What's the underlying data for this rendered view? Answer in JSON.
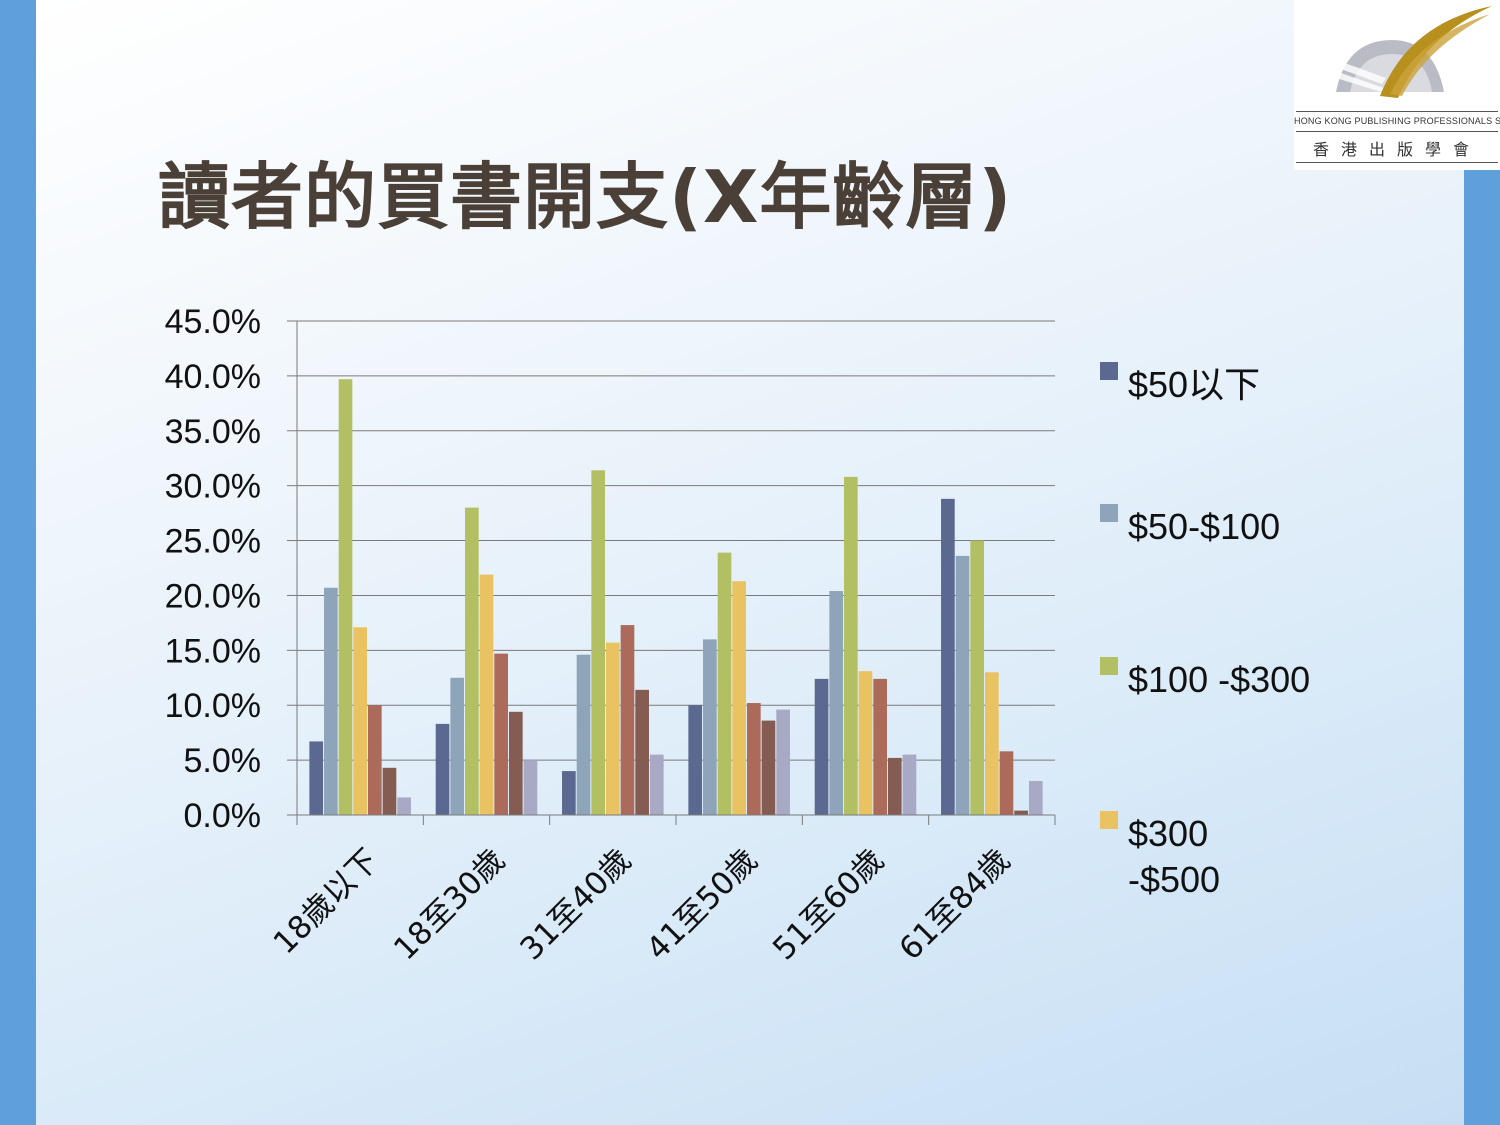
{
  "slide": {
    "title": "讀者的買書開支(X年齡層)"
  },
  "logo": {
    "english": "HONG KONG PUBLISHING PROFESSIONALS SOCIETY",
    "chinese": "香港出版學會"
  },
  "chart_data": {
    "type": "bar",
    "ylim": [
      0,
      45
    ],
    "ytick_labels": [
      "0.0%",
      "5.0%",
      "10.0%",
      "15.0%",
      "20.0%",
      "25.0%",
      "30.0%",
      "35.0%",
      "40.0%",
      "45.0%"
    ],
    "categories": [
      "18歲以下",
      "18至30歲",
      "31至40歲",
      "41至50歲",
      "51至60歲",
      "61至84歲"
    ],
    "legend_position": "right",
    "series": [
      {
        "name": "$50以下",
        "color": "#5b6890",
        "values": [
          6.7,
          8.3,
          4.0,
          10.0,
          12.4,
          28.8
        ]
      },
      {
        "name": "$50-$100",
        "color": "#8ea4b8",
        "values": [
          20.7,
          12.5,
          14.6,
          16.0,
          20.4,
          23.6
        ]
      },
      {
        "name": "$100 -$300",
        "color": "#b2c063",
        "values": [
          39.7,
          28.0,
          31.4,
          23.9,
          30.8,
          25.0
        ]
      },
      {
        "name": "$300 -$500",
        "color": "#e9c262",
        "values": [
          17.1,
          21.9,
          15.7,
          21.3,
          13.1,
          13.0
        ]
      },
      {
        "name": "",
        "color": "#ab6a5a",
        "values": [
          10.0,
          14.7,
          17.3,
          10.2,
          12.4,
          5.8
        ]
      },
      {
        "name": "",
        "color": "#845c52",
        "values": [
          4.3,
          9.4,
          11.4,
          8.6,
          5.2,
          0.4
        ]
      },
      {
        "name": "",
        "color": "#a8a9c4",
        "values": [
          1.6,
          5.0,
          5.5,
          9.6,
          5.5,
          3.1
        ]
      }
    ]
  }
}
